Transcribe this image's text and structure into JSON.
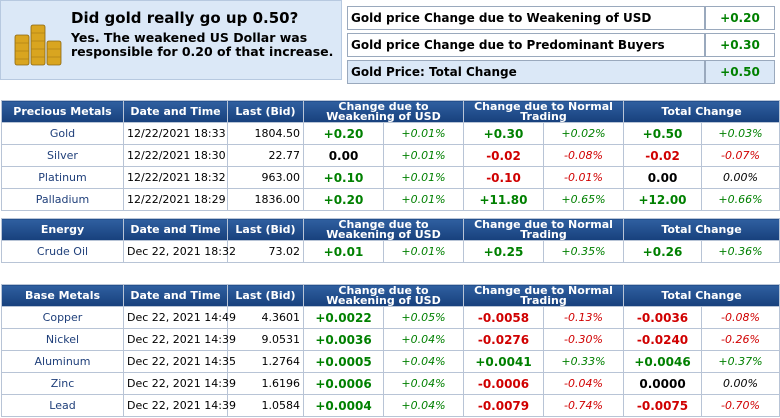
{
  "summary": {
    "title": "Did gold really go up 0.50?",
    "text": "Yes. The weakened US Dollar was responsible for 0.20 of that increase.",
    "rows": [
      [
        "Gold price Change due to Weakening of USD",
        "+0.20"
      ],
      [
        "Gold price Change due to Predominant Buyers",
        "+0.30"
      ],
      [
        "Gold Price: Total Change",
        "+0.50"
      ]
    ]
  },
  "tables": [
    {
      "header": [
        "Precious Metals",
        "Date and Time",
        "Last (Bid)",
        "Change due to Weakening of USD",
        "Change due to Normal Trading",
        "Total Change"
      ],
      "rows": [
        [
          "Gold",
          "12/22/2021 18:33",
          "1804.50",
          "+0.20",
          "+0.01%",
          "+0.30",
          "+0.02%",
          "+0.50",
          "+0.03%"
        ],
        [
          "Silver",
          "12/22/2021 18:30",
          "22.77",
          "0.00",
          "+0.01%",
          "-0.02",
          "-0.08%",
          "-0.02",
          "-0.07%"
        ],
        [
          "Platinum",
          "12/22/2021 18:32",
          "963.00",
          "+0.10",
          "+0.01%",
          "-0.10",
          "-0.01%",
          "0.00",
          "0.00%"
        ],
        [
          "Palladium",
          "12/22/2021 18:29",
          "1836.00",
          "+0.20",
          "+0.01%",
          "+11.80",
          "+0.65%",
          "+12.00",
          "+0.66%"
        ]
      ]
    },
    {
      "header": [
        "Energy",
        "Date and Time",
        "Last (Bid)",
        "Change due to Weakening of USD",
        "Change due to Normal Trading",
        "Total Change"
      ],
      "rows": [
        [
          "Crude Oil",
          "Dec 22, 2021 18:32",
          "73.02",
          "+0.01",
          "+0.01%",
          "+0.25",
          "+0.35%",
          "+0.26",
          "+0.36%"
        ]
      ]
    },
    {
      "header": [
        "Base Metals",
        "Date and Time",
        "Last (Bid)",
        "Change due to Weakening of USD",
        "Change due to Normal Trading",
        "Total Change"
      ],
      "rows": [
        [
          "Copper",
          "Dec 22, 2021 14:49",
          "4.3601",
          "+0.0022",
          "+0.05%",
          "-0.0058",
          "-0.13%",
          "-0.0036",
          "-0.08%"
        ],
        [
          "Nickel",
          "Dec 22, 2021 14:39",
          "9.0531",
          "+0.0036",
          "+0.04%",
          "-0.0276",
          "-0.30%",
          "-0.0240",
          "-0.26%"
        ],
        [
          "Aluminum",
          "Dec 22, 2021 14:35",
          "1.2764",
          "+0.0005",
          "+0.04%",
          "+0.0041",
          "+0.33%",
          "+0.0046",
          "+0.37%"
        ],
        [
          "Zinc",
          "Dec 22, 2021 14:39",
          "1.6196",
          "+0.0006",
          "+0.04%",
          "-0.0006",
          "-0.04%",
          "0.0000",
          "0.00%"
        ],
        [
          "Lead",
          "Dec 22, 2021 14:39",
          "1.0584",
          "+0.0004",
          "+0.04%",
          "-0.0079",
          "-0.74%",
          "-0.0075",
          "-0.70%"
        ]
      ]
    }
  ]
}
